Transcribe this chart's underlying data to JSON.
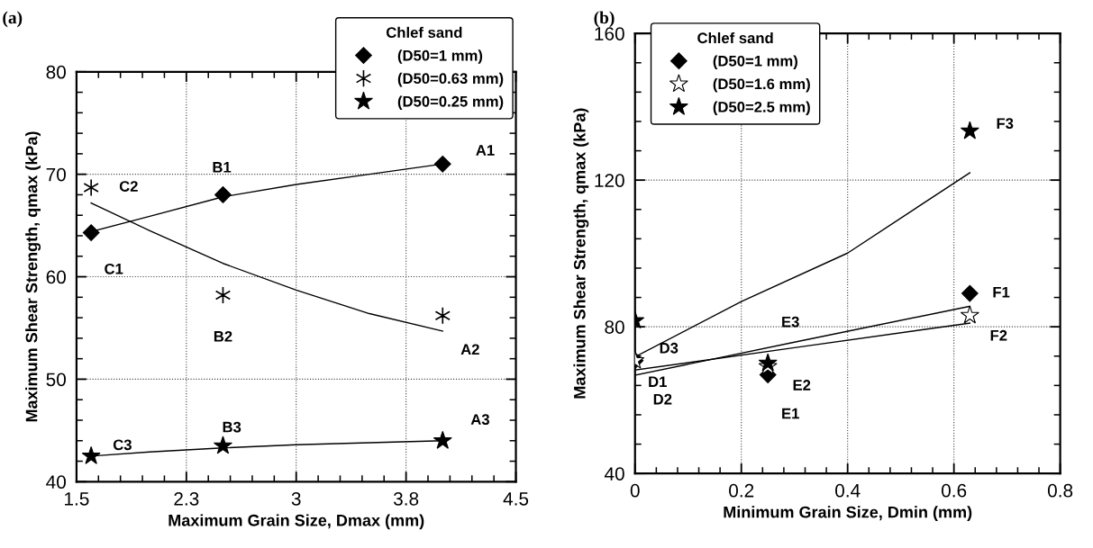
{
  "chart_data": [
    {
      "type": "scatter",
      "title": "(a)",
      "xlabel": "Maximum Grain Size, Dmax (mm)",
      "ylabel": "Maximum Shear Strength, qmax (kPa)",
      "legend_title": "Chlef sand",
      "xlim": [
        1.5,
        4.5
      ],
      "xticks": [
        1.5,
        {
          "value": 2.25,
          "label": "2.3"
        },
        3,
        {
          "value": 3.75,
          "label": "3.8"
        },
        4.5
      ],
      "ylim": [
        40,
        80
      ],
      "yticks": [
        40,
        50,
        60,
        70,
        80
      ],
      "grid": true,
      "legend": "top right",
      "series": [
        {
          "name": "(D50=1 mm)",
          "marker": "diamond",
          "color": "#000000",
          "x": [
            1.6,
            2.5,
            4.0
          ],
          "values": [
            64.3,
            68.0,
            71.0
          ]
        },
        {
          "name": "(D50=0.63 mm)",
          "marker": "cross",
          "color": "#000000",
          "x": [
            1.6,
            2.5,
            4.0
          ],
          "values": [
            68.7,
            58.2,
            56.2
          ]
        },
        {
          "name": "(D50=0.25 mm)",
          "marker": "star",
          "color": "#000000",
          "x": [
            1.6,
            2.5,
            4.0
          ],
          "values": [
            42.5,
            43.5,
            44.0
          ]
        },
        {
          "type": "line",
          "color": "#000000",
          "x": [
            1.6,
            2.0,
            2.5,
            3.0,
            3.5,
            4.0
          ],
          "values": [
            64.4,
            65.9,
            67.8,
            69.0,
            70.0,
            71.0
          ]
        },
        {
          "type": "line",
          "color": "#000000",
          "x": [
            1.6,
            2.0,
            2.5,
            3.0,
            3.5,
            4.0
          ],
          "values": [
            67.2,
            64.5,
            61.3,
            58.7,
            56.4,
            54.7
          ]
        },
        {
          "type": "line",
          "color": "#000000",
          "x": [
            1.6,
            2.0,
            2.5,
            3.0,
            3.5,
            4.0
          ],
          "values": [
            42.5,
            42.9,
            43.3,
            43.6,
            43.8,
            44.0
          ]
        }
      ],
      "annotations": [
        {
          "text": "A1",
          "x": 4.0,
          "y": 71.0
        },
        {
          "text": "B1",
          "x": 2.5,
          "y": 68.0
        },
        {
          "text": "C1",
          "x": 1.6,
          "y": 64.3
        },
        {
          "text": "C2",
          "x": 1.6,
          "y": 68.7
        },
        {
          "text": "B2",
          "x": 2.5,
          "y": 58.2
        },
        {
          "text": "A2",
          "x": 4.0,
          "y": 56.2
        },
        {
          "text": "C3",
          "x": 1.6,
          "y": 42.5
        },
        {
          "text": "B3",
          "x": 2.5,
          "y": 43.5
        },
        {
          "text": "A3",
          "x": 4.0,
          "y": 44.0
        }
      ]
    },
    {
      "type": "scatter",
      "title": "(b)",
      "xlabel": "Minimum Grain Size, Dmin (mm)",
      "ylabel": "Maximum Shear Strength, qmax (kPa)",
      "legend_title": "Chlef sand",
      "xlim": [
        0,
        0.8
      ],
      "xticks": [
        0,
        0.2,
        0.4,
        0.6,
        0.8
      ],
      "ylim": [
        40,
        160
      ],
      "yticks": [
        40,
        80,
        120,
        160
      ],
      "grid": true,
      "legend": "top left",
      "series": [
        {
          "name": "(D50=1 mm)",
          "marker": "diamond",
          "color": "#000000",
          "x": [
            0,
            0.25,
            0.63
          ],
          "values": [
            70.8,
            66.9,
            89.1
          ]
        },
        {
          "name": "(D50=1.6 mm)",
          "marker": "star",
          "color": "#ffffff",
          "x": [
            0,
            0.25,
            0.63
          ],
          "values": [
            70.8,
            69.2,
            83.1
          ]
        },
        {
          "name": "(D50=2.5 mm)",
          "marker": "star",
          "color": "#000000",
          "x": [
            0,
            0.25,
            0.63
          ],
          "values": [
            81.7,
            70.1,
            133.4
          ]
        },
        {
          "type": "line",
          "color": "#000000",
          "x": [
            0,
            0.2,
            0.4,
            0.63
          ],
          "values": [
            71.8,
            86.9,
            100.1,
            122.0
          ]
        },
        {
          "type": "line",
          "color": "#000000",
          "x": [
            0,
            0.3,
            0.63
          ],
          "values": [
            66.8,
            75.8,
            85.6
          ]
        },
        {
          "type": "line",
          "color": "#000000",
          "x": [
            0,
            0.3,
            0.63
          ],
          "values": [
            68.2,
            74.3,
            81.0
          ]
        }
      ],
      "annotations": [
        {
          "text": "D3",
          "x": 0,
          "y": 81.7
        },
        {
          "text": "D1",
          "x": 0,
          "y": 70.8
        },
        {
          "text": "D2",
          "x": 0,
          "y": 70.8
        },
        {
          "text": "E3",
          "x": 0.25,
          "y": 70.1
        },
        {
          "text": "E2",
          "x": 0.25,
          "y": 69.2
        },
        {
          "text": "E1",
          "x": 0.25,
          "y": 66.9
        },
        {
          "text": "F1",
          "x": 0.63,
          "y": 89.1
        },
        {
          "text": "F2",
          "x": 0.63,
          "y": 83.1
        },
        {
          "text": "F3",
          "x": 0.63,
          "y": 133.4
        }
      ]
    }
  ]
}
